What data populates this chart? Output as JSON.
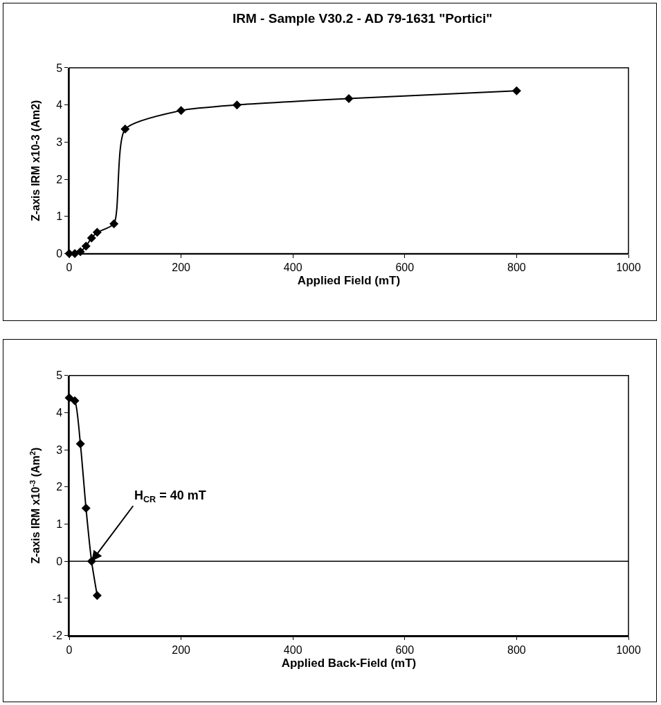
{
  "chart_data": [
    {
      "type": "line",
      "title": "IRM - Sample V30.2 - AD 79-1631 \"Portici\"",
      "xlabel": "Applied Field (mT)",
      "ylabel": "Z-axis IRM x10-3 (Am2)",
      "x": [
        0,
        10,
        20,
        30,
        40,
        50,
        80,
        100,
        200,
        300,
        500,
        800
      ],
      "values": [
        0,
        0,
        0.05,
        0.2,
        0.42,
        0.57,
        0.8,
        3.35,
        3.85,
        4.0,
        4.17,
        4.38
      ],
      "color": "#000000",
      "marker": "diamond",
      "line_style": "solid",
      "grid": false,
      "xlim": [
        0,
        1000
      ],
      "xticks": [
        0,
        200,
        400,
        600,
        800,
        1000
      ],
      "ylim": [
        0,
        5
      ],
      "yticks": [
        0,
        1,
        2,
        3,
        4,
        5
      ]
    },
    {
      "type": "line",
      "xlabel": "Applied Back-Field (mT)",
      "ylabel": "Z-axis IRM x10$^{-3}$ (Am$^{2}$)",
      "x": [
        0,
        10,
        20,
        30,
        40,
        50
      ],
      "values": [
        4.4,
        4.32,
        3.16,
        1.43,
        0,
        -0.92
      ],
      "color": "#000000",
      "marker": "diamond",
      "line_style": "solid",
      "grid": false,
      "ref_lines": [
        {
          "axis": "y",
          "value": 0
        }
      ],
      "xlim": [
        0,
        1000
      ],
      "xticks": [
        0,
        200,
        400,
        600,
        800,
        1000
      ],
      "ylim": [
        -2,
        5
      ],
      "yticks": [
        -2,
        -1,
        0,
        1,
        2,
        3,
        4,
        5
      ],
      "annotations": [
        {
          "text": "H$_{CR}$ = 40 mT",
          "x": 40,
          "y": 0
        }
      ]
    }
  ]
}
